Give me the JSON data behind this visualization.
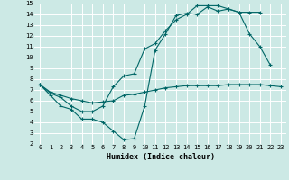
{
  "xlabel": "Humidex (Indice chaleur)",
  "bg_color": "#cce9e5",
  "grid_color": "#ffffff",
  "line_color": "#006666",
  "xlim": [
    -0.5,
    23.5
  ],
  "ylim": [
    2,
    15
  ],
  "xticks": [
    0,
    1,
    2,
    3,
    4,
    5,
    6,
    7,
    8,
    9,
    10,
    11,
    12,
    13,
    14,
    15,
    16,
    17,
    18,
    19,
    20,
    21,
    22,
    23
  ],
  "yticks": [
    2,
    3,
    4,
    5,
    6,
    7,
    8,
    9,
    10,
    11,
    12,
    13,
    14,
    15
  ],
  "line1_x": [
    0,
    1,
    2,
    3,
    4,
    5,
    6,
    7,
    8,
    9,
    10,
    11,
    12,
    13,
    14,
    15,
    16,
    17,
    18,
    19,
    20,
    21,
    22
  ],
  "line1_y": [
    7.5,
    6.5,
    5.5,
    5.2,
    4.3,
    4.3,
    4.0,
    3.2,
    2.4,
    2.5,
    5.5,
    10.7,
    12.2,
    13.9,
    14.1,
    14.0,
    14.7,
    14.3,
    14.5,
    14.2,
    12.2,
    11.0,
    9.3
  ],
  "line2_x": [
    0,
    1,
    2,
    3,
    4,
    5,
    6,
    7,
    8,
    9,
    10,
    11,
    12,
    13,
    14,
    15,
    16,
    17,
    18,
    19,
    20,
    21
  ],
  "line2_y": [
    7.5,
    6.7,
    6.3,
    5.5,
    5.0,
    5.0,
    5.5,
    7.3,
    8.3,
    8.5,
    10.8,
    11.3,
    12.5,
    13.5,
    14.0,
    14.8,
    14.8,
    14.8,
    14.5,
    14.2,
    14.2,
    14.2
  ],
  "line3_x": [
    0,
    1,
    2,
    3,
    4,
    5,
    6,
    7,
    8,
    9,
    10,
    11,
    12,
    13,
    14,
    15,
    16,
    17,
    18,
    19,
    20,
    21,
    22,
    23
  ],
  "line3_y": [
    7.5,
    6.8,
    6.5,
    6.2,
    6.0,
    5.8,
    5.9,
    6.0,
    6.5,
    6.6,
    6.8,
    7.0,
    7.2,
    7.3,
    7.4,
    7.4,
    7.4,
    7.4,
    7.5,
    7.5,
    7.5,
    7.5,
    7.4,
    7.3
  ]
}
